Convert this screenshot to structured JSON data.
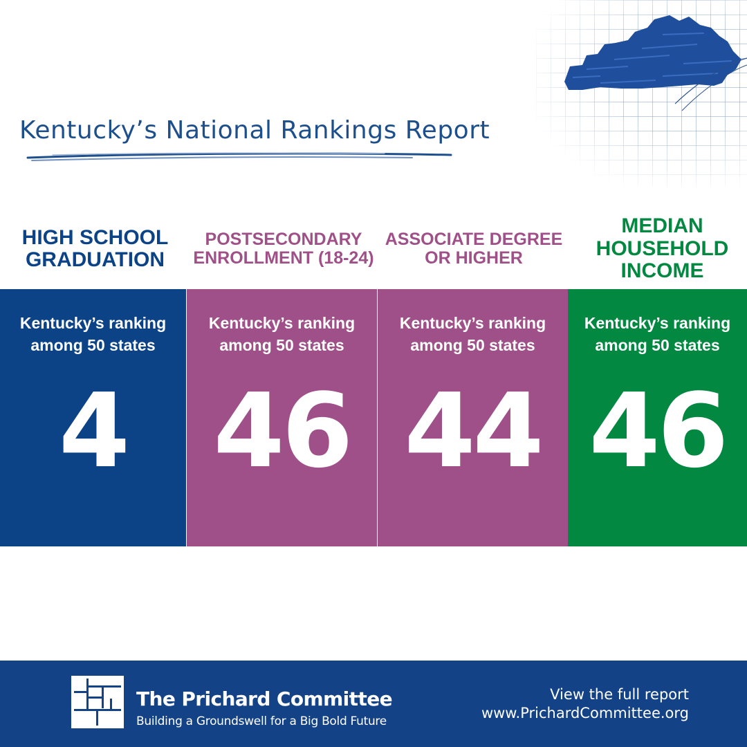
{
  "title": "Kentucky’s National Rankings Report",
  "colors": {
    "navy": "#0c4387",
    "purple": "#a05088",
    "green": "#028840",
    "title_blue": "#1d4f8c",
    "footer_blue": "#134286"
  },
  "decorations": {
    "map_icon": "kentucky-map-icon",
    "logo_icon": "prichard-committee-logo-icon"
  },
  "categories": [
    {
      "title": "HIGH SCHOOL GRADUATION",
      "subtitle": "Kentucky’s ranking among 50 states",
      "rank": "4"
    },
    {
      "title": "POSTSECONDARY ENROLLMENT (18-24)",
      "subtitle": "Kentucky’s ranking among 50 states",
      "rank": "46"
    },
    {
      "title": "ASSOCIATE DEGREE OR HIGHER",
      "subtitle": "Kentucky’s ranking among 50 states",
      "rank": "44"
    },
    {
      "title": "MEDIAN HOUSEHOLD INCOME",
      "subtitle": "Kentucky’s ranking among 50 states",
      "rank": "46"
    }
  ],
  "footer": {
    "org_name": "The Prichard Committee",
    "tagline": "Building a Groundswell for a Big  Bold Future",
    "cta_line1": "View the full report",
    "cta_line2": "www.PrichardCommittee.org"
  }
}
